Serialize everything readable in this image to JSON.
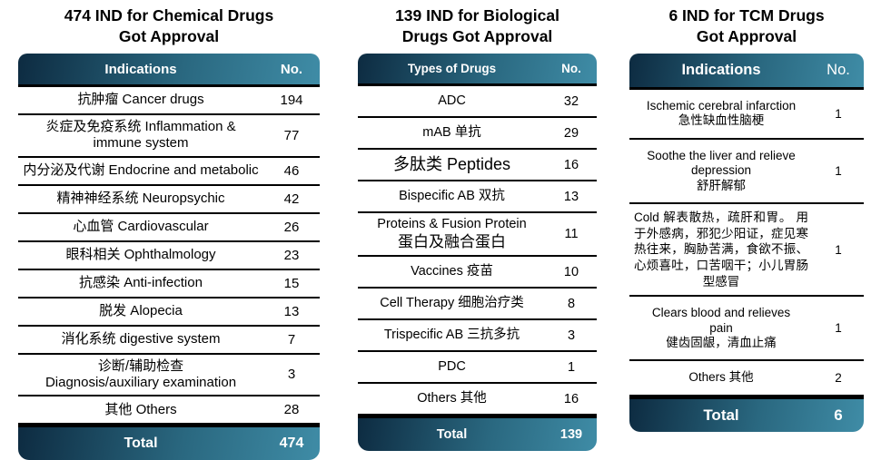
{
  "colors": {
    "header_gradient_start": "#0d2b41",
    "header_gradient_mid": "#2a6880",
    "header_gradient_end": "#3f8ca6",
    "separator": "#000000",
    "header_text": "#ffffff",
    "body_text": "#000000",
    "background": "#ffffff"
  },
  "tables": [
    {
      "title": "474 IND for Chemical Drugs\nGot Approval",
      "col1": "Indications",
      "col2": "No.",
      "rows": [
        {
          "label": "抗肿瘤 Cancer drugs",
          "value": "194"
        },
        {
          "label": "炎症及免疫系统 Inflammation &\nimmune system",
          "value": "77"
        },
        {
          "label": "内分泌及代谢 Endocrine and metabolic",
          "value": "46"
        },
        {
          "label": "精神神经系统 Neuropsychic",
          "value": "42"
        },
        {
          "label": "心血管 Cardiovascular",
          "value": "26"
        },
        {
          "label": "眼科相关 Ophthalmology",
          "value": "23"
        },
        {
          "label": "抗感染 Anti-infection",
          "value": "15"
        },
        {
          "label": "脱发 Alopecia",
          "value": "13"
        },
        {
          "label": "消化系统 digestive system",
          "value": "7"
        },
        {
          "label": "诊断/辅助检查\nDiagnosis/auxiliary examination",
          "value": "3"
        },
        {
          "label": "其他 Others",
          "value": "28"
        }
      ],
      "total_label": "Total",
      "total_value": "474"
    },
    {
      "title": "139 IND for Biological\nDrugs Got Approval",
      "col1": "Types of Drugs",
      "col2": "No.",
      "rows": [
        {
          "label": "ADC",
          "value": "32"
        },
        {
          "label": "mAB 单抗",
          "value": "29"
        },
        {
          "label": "多肽类 Peptides",
          "value": "16",
          "emphasis": "large"
        },
        {
          "label": "Bispecific AB 双抗",
          "value": "13"
        },
        {
          "label": "Proteins & Fusion Protein\n蛋白及融合蛋白",
          "value": "11",
          "emphasis": "large-line2"
        },
        {
          "label": "Vaccines 疫苗",
          "value": "10"
        },
        {
          "label": "Cell Therapy 细胞治疗类",
          "value": "8"
        },
        {
          "label": "Trispecific AB 三抗多抗",
          "value": "3"
        },
        {
          "label": "PDC",
          "value": "1"
        },
        {
          "label": "Others 其他",
          "value": "16"
        }
      ],
      "total_label": "Total",
      "total_value": "139"
    },
    {
      "title": "6 IND for TCM Drugs\nGot Approval",
      "col1": "Indications",
      "col2": "No.",
      "rows": [
        {
          "label": "Ischemic cerebral infarction\n急性缺血性脑梗",
          "value": "1"
        },
        {
          "label": "Soothe the liver and relieve\ndepression\n舒肝解郁",
          "value": "1"
        },
        {
          "label": "Cold 解表散热，疏肝和胃。 用于外感病，邪犯少阳证，症见寒热往来，胸胁苦满，食欲不振、心烦喜吐，口苦咽干；小儿胃肠型感冒",
          "value": "1",
          "emphasis": "justify"
        },
        {
          "label": "Clears blood and relieves\npain\n健齿固龈，清血止痛",
          "value": "1"
        },
        {
          "label": "Others 其他",
          "value": "2"
        }
      ],
      "total_label": "Total",
      "total_value": "6"
    }
  ]
}
